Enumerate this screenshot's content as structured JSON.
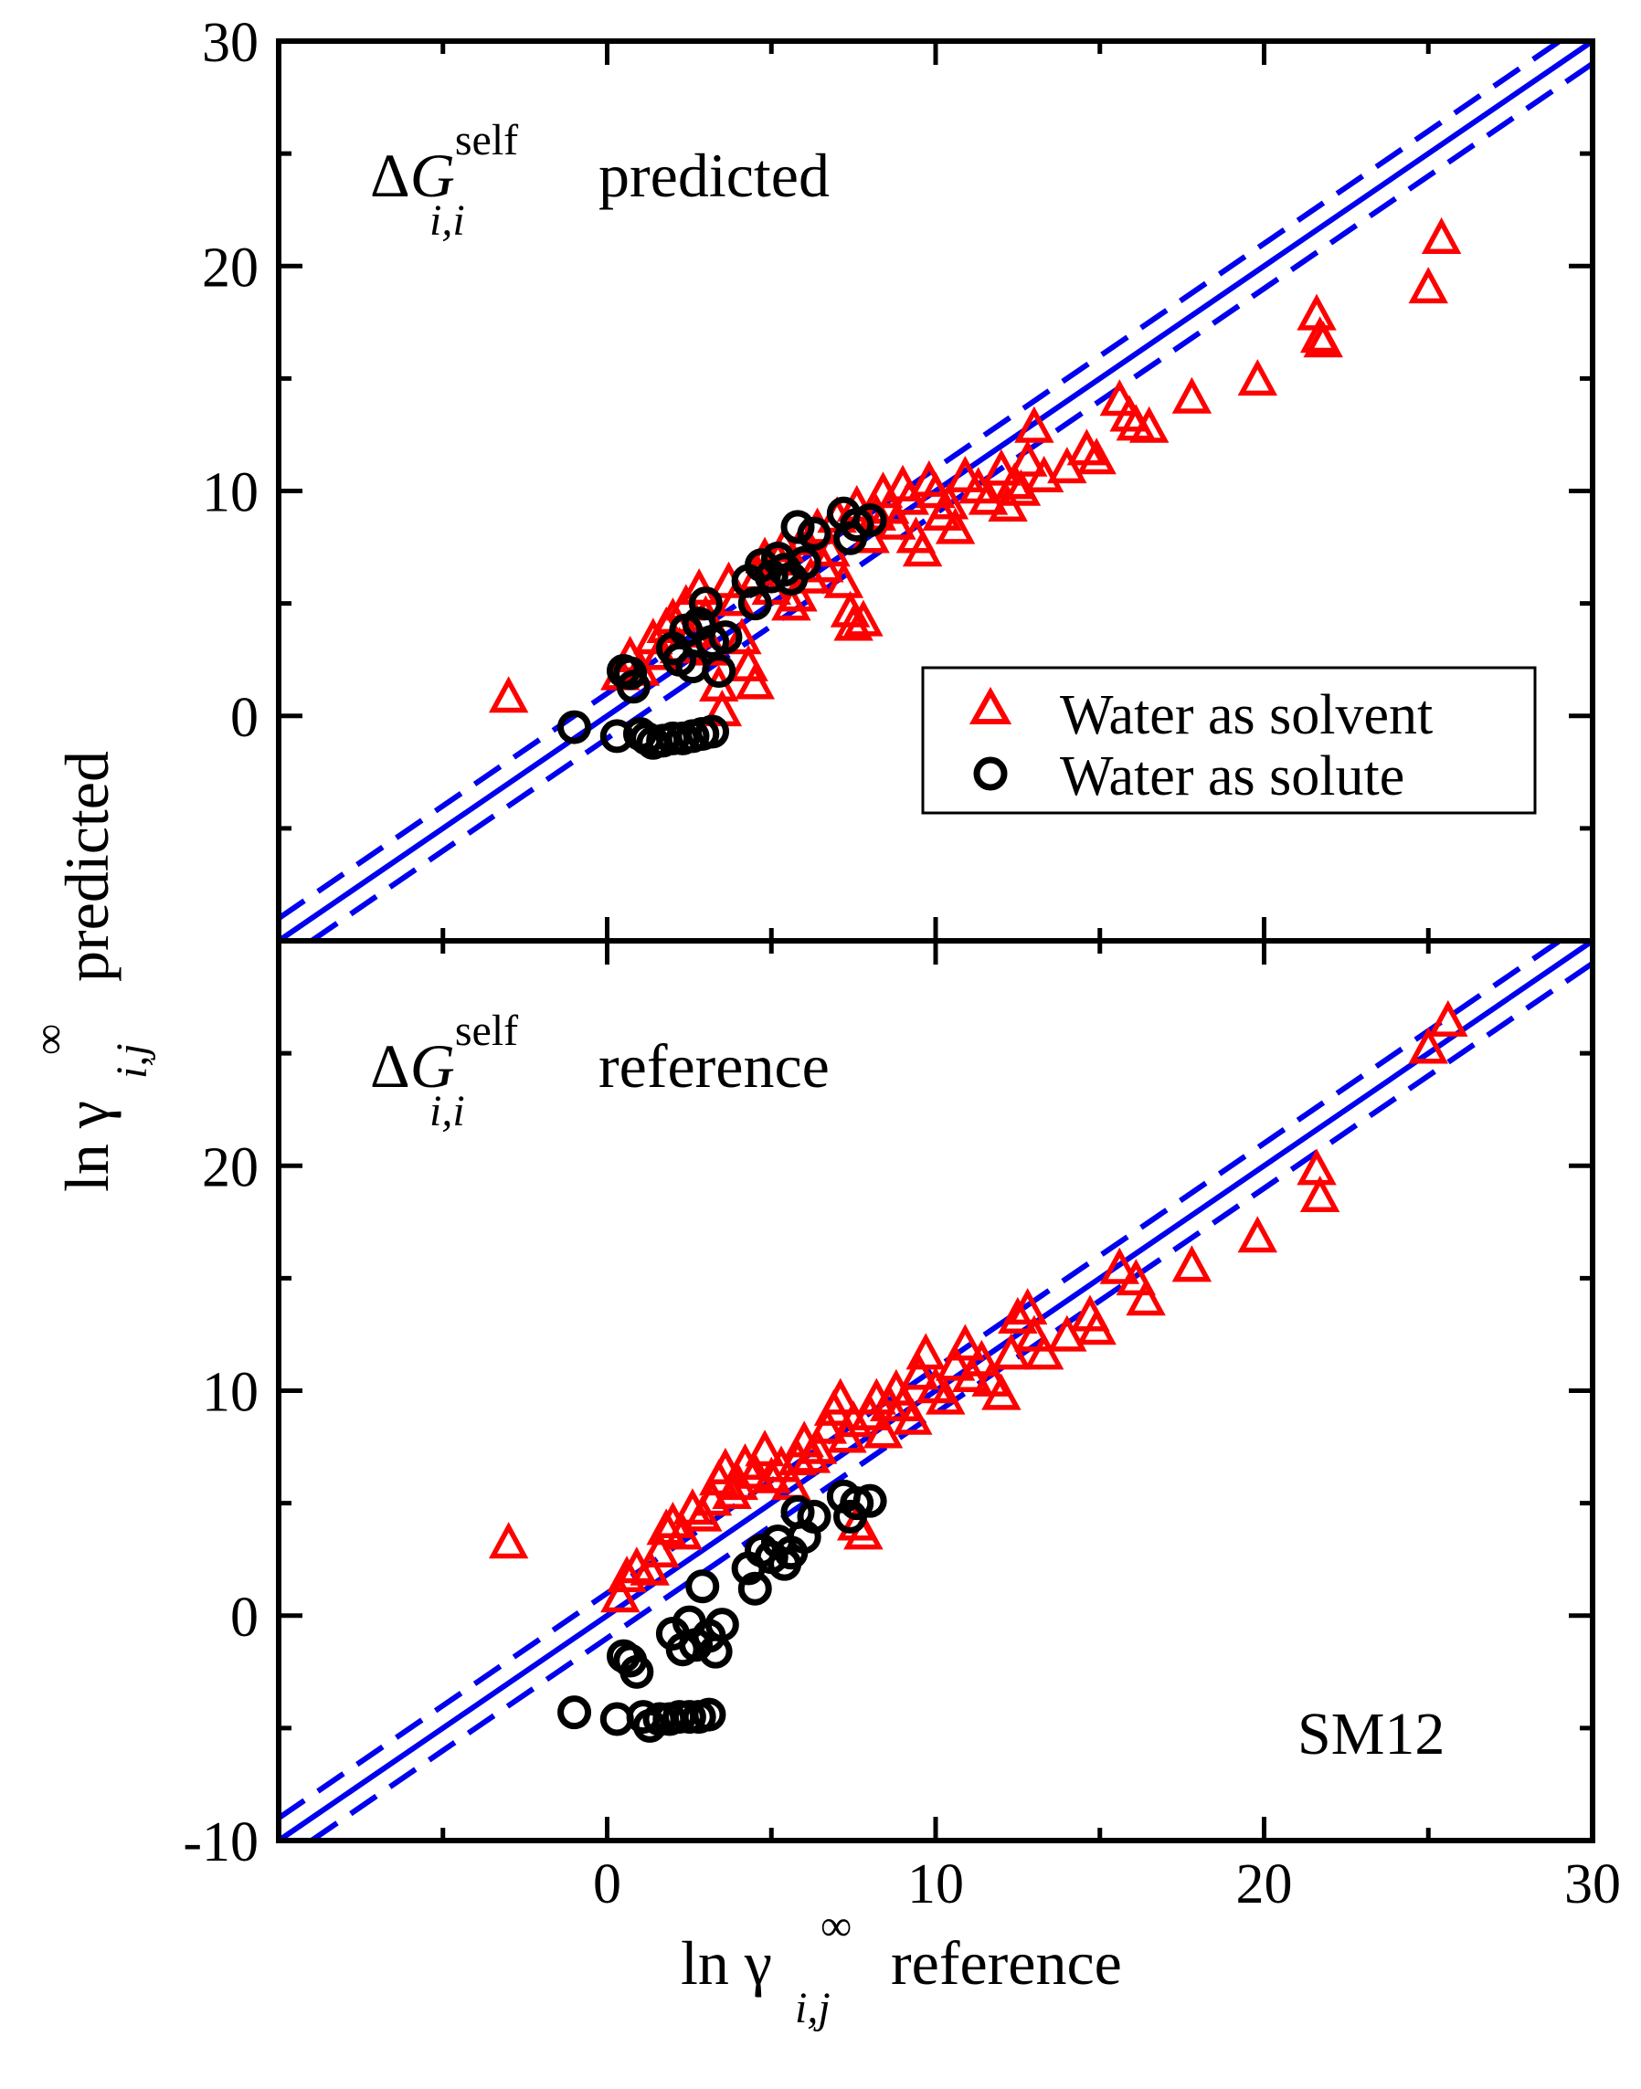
{
  "chart_data": [
    {
      "type": "scatter",
      "panel": "top",
      "label": {
        "delta": "ΔG",
        "italic": "G",
        "superscript": "self",
        "subscript": "i,i",
        "suffix": "predicted"
      },
      "xlim": [
        -10,
        30
      ],
      "ylim": [
        -10,
        30
      ],
      "xticks": [
        0,
        10,
        20,
        30
      ],
      "yticks": [
        0,
        10,
        20,
        30
      ],
      "ytick_labels": [
        "0",
        "10",
        "20",
        "30"
      ],
      "reference_lines": [
        {
          "style": "solid",
          "offset": 0
        },
        {
          "style": "dashed",
          "offset": 1
        },
        {
          "style": "dashed",
          "offset": -1
        }
      ],
      "series": [
        {
          "name": "Water as solvent",
          "marker": "triangle",
          "color": "#ff0000",
          "points": [
            [
              -3.0,
              0.8
            ],
            [
              0.4,
              1.8
            ],
            [
              0.7,
              2.6
            ],
            [
              1.0,
              2.0
            ],
            [
              1.4,
              3.4
            ],
            [
              1.6,
              2.7
            ],
            [
              1.8,
              3.9
            ],
            [
              2.0,
              4.3
            ],
            [
              2.2,
              3.0
            ],
            [
              2.4,
              4.9
            ],
            [
              2.6,
              3.7
            ],
            [
              2.8,
              5.6
            ],
            [
              3.0,
              4.4
            ],
            [
              3.2,
              2.9
            ],
            [
              3.4,
              1.3
            ],
            [
              3.5,
              0.2
            ],
            [
              3.7,
              5.9
            ],
            [
              3.9,
              5.1
            ],
            [
              4.1,
              3.4
            ],
            [
              4.3,
              2.2
            ],
            [
              4.5,
              1.4
            ],
            [
              4.6,
              6.2
            ],
            [
              4.8,
              7.0
            ],
            [
              5.0,
              5.6
            ],
            [
              5.2,
              6.9
            ],
            [
              5.4,
              7.5
            ],
            [
              5.6,
              4.9
            ],
            [
              5.8,
              5.3
            ],
            [
              6.0,
              7.8
            ],
            [
              6.2,
              6.1
            ],
            [
              6.4,
              8.3
            ],
            [
              6.6,
              6.6
            ],
            [
              6.8,
              7.3
            ],
            [
              7.0,
              8.8
            ],
            [
              7.2,
              5.9
            ],
            [
              7.4,
              4.6
            ],
            [
              7.5,
              4.0
            ],
            [
              7.6,
              9.3
            ],
            [
              7.8,
              4.2
            ],
            [
              8.0,
              7.9
            ],
            [
              8.2,
              8.9
            ],
            [
              8.4,
              9.9
            ],
            [
              8.6,
              9.2
            ],
            [
              8.8,
              8.5
            ],
            [
              9.0,
              10.2
            ],
            [
              9.2,
              9.6
            ],
            [
              9.4,
              7.9
            ],
            [
              9.6,
              7.3
            ],
            [
              9.8,
              10.4
            ],
            [
              10.0,
              9.9
            ],
            [
              10.2,
              8.9
            ],
            [
              10.4,
              9.4
            ],
            [
              10.6,
              8.3
            ],
            [
              10.9,
              10.6
            ],
            [
              11.3,
              10.1
            ],
            [
              11.6,
              9.6
            ],
            [
              12.0,
              10.9
            ],
            [
              12.2,
              9.3
            ],
            [
              12.4,
              10.3
            ],
            [
              12.6,
              10.0
            ],
            [
              12.8,
              11.3
            ],
            [
              13.0,
              12.8
            ],
            [
              13.3,
              10.6
            ],
            [
              14.0,
              11.0
            ],
            [
              14.6,
              11.8
            ],
            [
              14.9,
              11.4
            ],
            [
              15.6,
              14.0
            ],
            [
              15.9,
              13.3
            ],
            [
              16.1,
              12.9
            ],
            [
              16.5,
              12.8
            ],
            [
              17.8,
              14.1
            ],
            [
              19.8,
              14.9
            ],
            [
              21.6,
              17.8
            ],
            [
              21.7,
              16.8
            ],
            [
              21.8,
              16.6
            ],
            [
              25.0,
              19.0
            ],
            [
              25.4,
              21.2
            ]
          ]
        },
        {
          "name": "Water as solute",
          "marker": "circle",
          "color": "#000000",
          "points": [
            [
              -1.0,
              -0.5
            ],
            [
              0.3,
              -0.9
            ],
            [
              0.5,
              2.0
            ],
            [
              0.7,
              1.9
            ],
            [
              0.8,
              1.3
            ],
            [
              1.0,
              -0.8
            ],
            [
              1.2,
              -1.0
            ],
            [
              1.4,
              -1.2
            ],
            [
              1.7,
              -1.1
            ],
            [
              2.0,
              -1.0
            ],
            [
              2.3,
              -1.0
            ],
            [
              2.6,
              -0.9
            ],
            [
              2.9,
              -0.8
            ],
            [
              3.2,
              -0.7
            ],
            [
              2.0,
              3.0
            ],
            [
              2.2,
              2.5
            ],
            [
              2.4,
              3.8
            ],
            [
              2.6,
              2.2
            ],
            [
              2.8,
              4.1
            ],
            [
              3.0,
              5.0
            ],
            [
              3.2,
              3.3
            ],
            [
              3.4,
              2.0
            ],
            [
              3.6,
              3.5
            ],
            [
              4.3,
              6.0
            ],
            [
              4.5,
              5.0
            ],
            [
              4.7,
              6.7
            ],
            [
              5.0,
              6.2
            ],
            [
              5.2,
              7.0
            ],
            [
              5.4,
              6.5
            ],
            [
              5.6,
              6.1
            ],
            [
              5.8,
              8.4
            ],
            [
              6.0,
              6.8
            ],
            [
              6.3,
              8.1
            ],
            [
              7.2,
              9.0
            ],
            [
              7.4,
              7.9
            ],
            [
              7.6,
              8.5
            ],
            [
              8.0,
              8.7
            ]
          ]
        }
      ]
    },
    {
      "type": "scatter",
      "panel": "bottom",
      "label": {
        "delta": "ΔG",
        "italic": "G",
        "superscript": "self",
        "subscript": "i,i",
        "suffix": "reference"
      },
      "xlim": [
        -10,
        30
      ],
      "ylim": [
        -10,
        30
      ],
      "xticks": [
        0,
        10,
        20,
        30
      ],
      "xtick_labels": [
        "0",
        "10",
        "20",
        "30"
      ],
      "yticks": [
        -10,
        0,
        10,
        20
      ],
      "ytick_labels": [
        "-10",
        "0",
        "10",
        "20"
      ],
      "reference_lines": [
        {
          "style": "solid",
          "offset": 0
        },
        {
          "style": "dashed",
          "offset": 1
        },
        {
          "style": "dashed",
          "offset": -1
        }
      ],
      "series": [
        {
          "name": "Water as solvent",
          "marker": "triangle",
          "color": "#ff0000",
          "points": [
            [
              -3.0,
              3.2
            ],
            [
              0.4,
              0.8
            ],
            [
              0.6,
              1.7
            ],
            [
              0.9,
              2.1
            ],
            [
              1.3,
              2.0
            ],
            [
              1.6,
              2.8
            ],
            [
              1.8,
              3.8
            ],
            [
              2.0,
              4.1
            ],
            [
              2.3,
              3.6
            ],
            [
              2.6,
              4.7
            ],
            [
              2.9,
              4.4
            ],
            [
              3.2,
              5.1
            ],
            [
              3.4,
              6.0
            ],
            [
              3.6,
              6.5
            ],
            [
              3.8,
              5.4
            ],
            [
              4.0,
              5.8
            ],
            [
              4.2,
              6.7
            ],
            [
              4.5,
              6.3
            ],
            [
              4.8,
              7.3
            ],
            [
              5.0,
              6.1
            ],
            [
              5.3,
              6.6
            ],
            [
              5.6,
              5.8
            ],
            [
              5.8,
              6.9
            ],
            [
              6.0,
              7.7
            ],
            [
              6.2,
              7.0
            ],
            [
              6.4,
              7.4
            ],
            [
              6.7,
              8.3
            ],
            [
              6.9,
              9.1
            ],
            [
              7.1,
              9.6
            ],
            [
              7.3,
              7.9
            ],
            [
              7.5,
              8.6
            ],
            [
              7.6,
              4.0
            ],
            [
              7.8,
              3.6
            ],
            [
              8.0,
              8.9
            ],
            [
              8.2,
              9.6
            ],
            [
              8.4,
              8.1
            ],
            [
              8.6,
              9.3
            ],
            [
              8.8,
              10.0
            ],
            [
              9.0,
              9.3
            ],
            [
              9.3,
              8.7
            ],
            [
              9.5,
              10.7
            ],
            [
              9.7,
              11.6
            ],
            [
              10.0,
              10.1
            ],
            [
              10.3,
              9.6
            ],
            [
              10.6,
              11.1
            ],
            [
              10.9,
              12.0
            ],
            [
              11.1,
              10.6
            ],
            [
              11.4,
              11.3
            ],
            [
              11.7,
              10.4
            ],
            [
              12.0,
              9.8
            ],
            [
              12.3,
              11.6
            ],
            [
              12.5,
              13.2
            ],
            [
              12.8,
              13.6
            ],
            [
              13.0,
              12.4
            ],
            [
              13.3,
              11.6
            ],
            [
              14.0,
              12.4
            ],
            [
              14.7,
              13.3
            ],
            [
              14.9,
              12.7
            ],
            [
              15.6,
              15.4
            ],
            [
              16.1,
              14.9
            ],
            [
              16.4,
              14.0
            ],
            [
              17.8,
              15.5
            ],
            [
              19.8,
              16.8
            ],
            [
              21.6,
              19.8
            ],
            [
              21.7,
              18.6
            ],
            [
              25.0,
              25.2
            ],
            [
              25.6,
              26.4
            ]
          ]
        },
        {
          "name": "Water as solute",
          "marker": "circle",
          "color": "#000000",
          "points": [
            [
              -1.0,
              -4.3
            ],
            [
              0.3,
              -4.6
            ],
            [
              0.5,
              -1.8
            ],
            [
              0.7,
              -2.0
            ],
            [
              0.9,
              -2.5
            ],
            [
              1.1,
              -4.5
            ],
            [
              1.3,
              -4.9
            ],
            [
              1.6,
              -4.6
            ],
            [
              1.9,
              -4.6
            ],
            [
              2.2,
              -4.5
            ],
            [
              2.5,
              -4.5
            ],
            [
              2.8,
              -4.5
            ],
            [
              3.1,
              -4.4
            ],
            [
              2.0,
              -0.8
            ],
            [
              2.3,
              -1.5
            ],
            [
              2.5,
              -0.3
            ],
            [
              2.7,
              -1.3
            ],
            [
              2.9,
              1.3
            ],
            [
              3.1,
              -0.9
            ],
            [
              3.3,
              -1.6
            ],
            [
              3.5,
              -0.4
            ],
            [
              4.3,
              2.1
            ],
            [
              4.5,
              1.2
            ],
            [
              4.7,
              2.9
            ],
            [
              5.0,
              2.6
            ],
            [
              5.2,
              3.3
            ],
            [
              5.4,
              2.3
            ],
            [
              5.6,
              2.8
            ],
            [
              5.8,
              4.6
            ],
            [
              6.0,
              3.5
            ],
            [
              6.3,
              4.4
            ],
            [
              7.2,
              5.3
            ],
            [
              7.4,
              4.4
            ],
            [
              7.6,
              5.0
            ],
            [
              8.0,
              5.1
            ]
          ]
        }
      ]
    }
  ],
  "legend": {
    "items": [
      {
        "label": "Water as solvent",
        "marker": "triangle",
        "color": "#ff0000"
      },
      {
        "label": "Water as solute",
        "marker": "circle",
        "color": "#000000"
      }
    ]
  },
  "annotation": "SM12",
  "xlabel": {
    "prefix": "ln γ",
    "superscript": "∞",
    "subscript": "i,j",
    "suffix": "reference"
  },
  "ylabel": {
    "prefix": "ln γ",
    "superscript": "∞",
    "subscript": "i,j",
    "suffix": "predicted"
  },
  "colors": {
    "line": "#0000ee",
    "frame": "#000000"
  }
}
